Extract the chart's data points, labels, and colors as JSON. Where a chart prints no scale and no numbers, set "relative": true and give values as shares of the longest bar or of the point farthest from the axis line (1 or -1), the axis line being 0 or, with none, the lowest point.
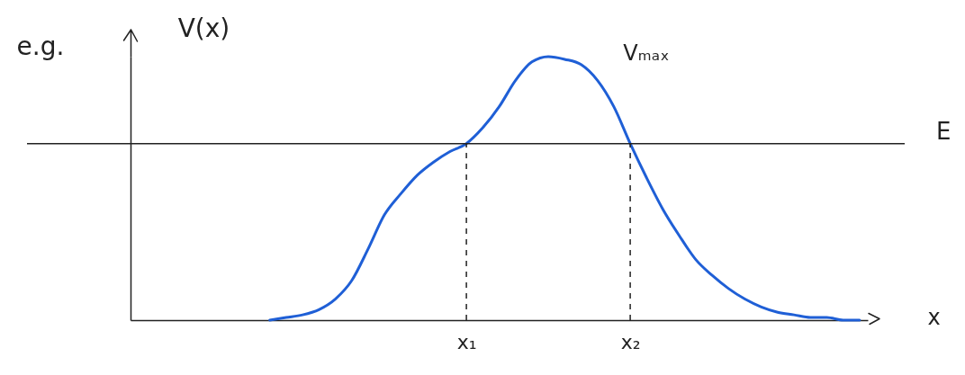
{
  "chart_data": {
    "type": "line",
    "relative": true,
    "xlabel": "x",
    "ylabel": "V(x)",
    "categories": [
      null,
      null,
      null,
      null,
      null,
      null,
      null,
      null,
      null,
      null,
      null,
      null,
      null,
      null,
      null,
      null,
      null,
      null,
      null,
      null,
      "x₁",
      null,
      null,
      null,
      null,
      null,
      null,
      null,
      null,
      null,
      "x₂",
      null,
      null,
      null,
      null,
      null,
      null,
      null,
      null,
      null,
      null,
      null,
      null,
      null,
      null
    ],
    "series": [
      {
        "color": "#1f5fd6",
        "values": [
          null,
          null,
          null,
          null,
          null,
          null,
          null,
          null,
          0.0,
          0.01,
          0.02,
          0.04,
          0.08,
          0.15,
          0.27,
          0.4,
          0.48,
          0.55,
          0.6,
          0.64,
          0.67,
          0.73,
          0.81,
          0.91,
          0.98,
          1.0,
          0.99,
          0.97,
          0.91,
          0.81,
          0.67,
          0.54,
          0.42,
          0.32,
          0.23,
          0.17,
          0.12,
          0.08,
          0.05,
          0.03,
          0.02,
          0.01,
          0.01,
          0.0,
          0.0
        ]
      }
    ],
    "ref_lines": [
      {
        "axis": "y",
        "value": 0.67,
        "label": "E"
      },
      {
        "axis": "x",
        "value": "x₁",
        "line_style": "dashed"
      },
      {
        "axis": "x",
        "value": "x₂",
        "line_style": "dashed"
      }
    ],
    "annotations": [
      "e.g.",
      "Vₘₐₓ"
    ]
  }
}
